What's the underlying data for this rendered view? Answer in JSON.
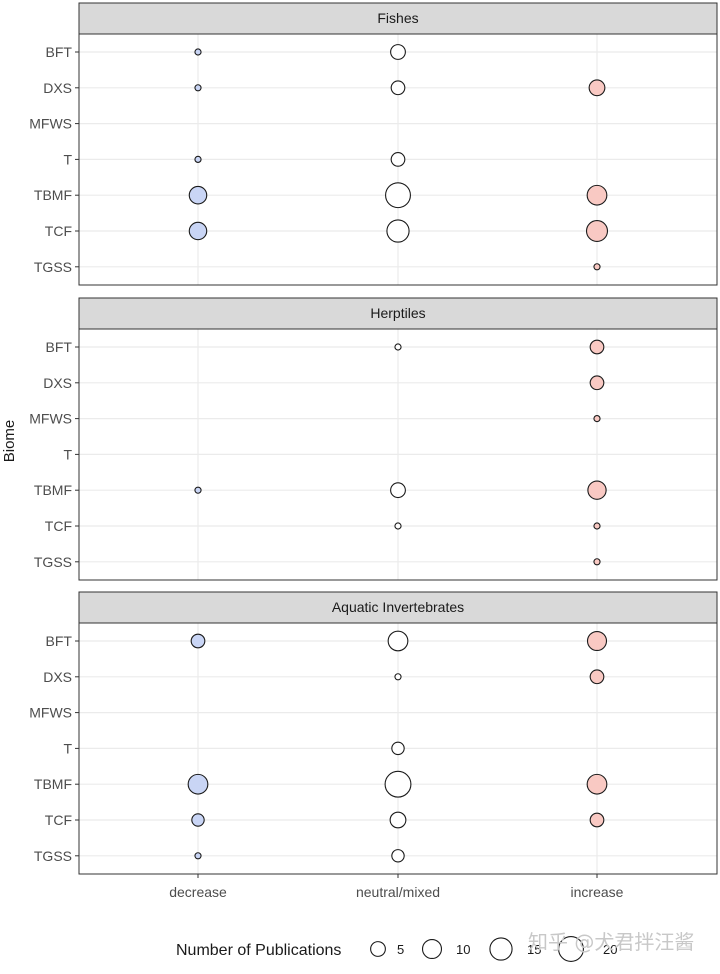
{
  "chart_data": {
    "type": "scatter",
    "ylabel": "Biome",
    "x_categories": [
      "decrease",
      "neutral/mixed",
      "increase"
    ],
    "y_categories": [
      "BFT",
      "DXS",
      "MFWS",
      "T",
      "TBMF",
      "TCF",
      "TGSS"
    ],
    "fill_colors": {
      "decrease": "#c9d5f5",
      "neutral/mixed": "#ffffff",
      "increase": "#f9c9c3"
    },
    "facets": [
      {
        "title": "Fishes",
        "points": [
          {
            "x": "decrease",
            "y": "BFT",
            "n": 1
          },
          {
            "x": "decrease",
            "y": "DXS",
            "n": 1
          },
          {
            "x": "decrease",
            "y": "T",
            "n": 1
          },
          {
            "x": "decrease",
            "y": "TBMF",
            "n": 8
          },
          {
            "x": "decrease",
            "y": "TCF",
            "n": 8
          },
          {
            "x": "neutral/mixed",
            "y": "BFT",
            "n": 5
          },
          {
            "x": "neutral/mixed",
            "y": "DXS",
            "n": 4
          },
          {
            "x": "neutral/mixed",
            "y": "T",
            "n": 4
          },
          {
            "x": "neutral/mixed",
            "y": "TBMF",
            "n": 20
          },
          {
            "x": "neutral/mixed",
            "y": "TCF",
            "n": 15
          },
          {
            "x": "increase",
            "y": "DXS",
            "n": 6
          },
          {
            "x": "increase",
            "y": "TBMF",
            "n": 11
          },
          {
            "x": "increase",
            "y": "TCF",
            "n": 13
          },
          {
            "x": "increase",
            "y": "TGSS",
            "n": 1
          }
        ]
      },
      {
        "title": "Herptiles",
        "points": [
          {
            "x": "decrease",
            "y": "TBMF",
            "n": 1
          },
          {
            "x": "neutral/mixed",
            "y": "BFT",
            "n": 1
          },
          {
            "x": "neutral/mixed",
            "y": "TBMF",
            "n": 5
          },
          {
            "x": "neutral/mixed",
            "y": "TCF",
            "n": 1
          },
          {
            "x": "increase",
            "y": "BFT",
            "n": 4
          },
          {
            "x": "increase",
            "y": "DXS",
            "n": 4
          },
          {
            "x": "increase",
            "y": "MFWS",
            "n": 1
          },
          {
            "x": "increase",
            "y": "TBMF",
            "n": 9
          },
          {
            "x": "increase",
            "y": "TCF",
            "n": 1
          },
          {
            "x": "increase",
            "y": "TGSS",
            "n": 1
          }
        ]
      },
      {
        "title": "Aquatic Invertebrates",
        "points": [
          {
            "x": "decrease",
            "y": "BFT",
            "n": 4
          },
          {
            "x": "decrease",
            "y": "TBMF",
            "n": 11
          },
          {
            "x": "decrease",
            "y": "TCF",
            "n": 3
          },
          {
            "x": "decrease",
            "y": "TGSS",
            "n": 1
          },
          {
            "x": "neutral/mixed",
            "y": "BFT",
            "n": 11
          },
          {
            "x": "neutral/mixed",
            "y": "DXS",
            "n": 1
          },
          {
            "x": "neutral/mixed",
            "y": "T",
            "n": 3
          },
          {
            "x": "neutral/mixed",
            "y": "TBMF",
            "n": 22
          },
          {
            "x": "neutral/mixed",
            "y": "TCF",
            "n": 6
          },
          {
            "x": "neutral/mixed",
            "y": "TGSS",
            "n": 3
          },
          {
            "x": "increase",
            "y": "BFT",
            "n": 10
          },
          {
            "x": "increase",
            "y": "DXS",
            "n": 4
          },
          {
            "x": "increase",
            "y": "TBMF",
            "n": 11
          },
          {
            "x": "increase",
            "y": "TCF",
            "n": 4
          }
        ]
      }
    ],
    "legend": {
      "title": "Number of Publications",
      "position": "bottom",
      "sizes": [
        5,
        10,
        15,
        20
      ]
    }
  },
  "watermark": "知乎 @犬君拌汪酱"
}
